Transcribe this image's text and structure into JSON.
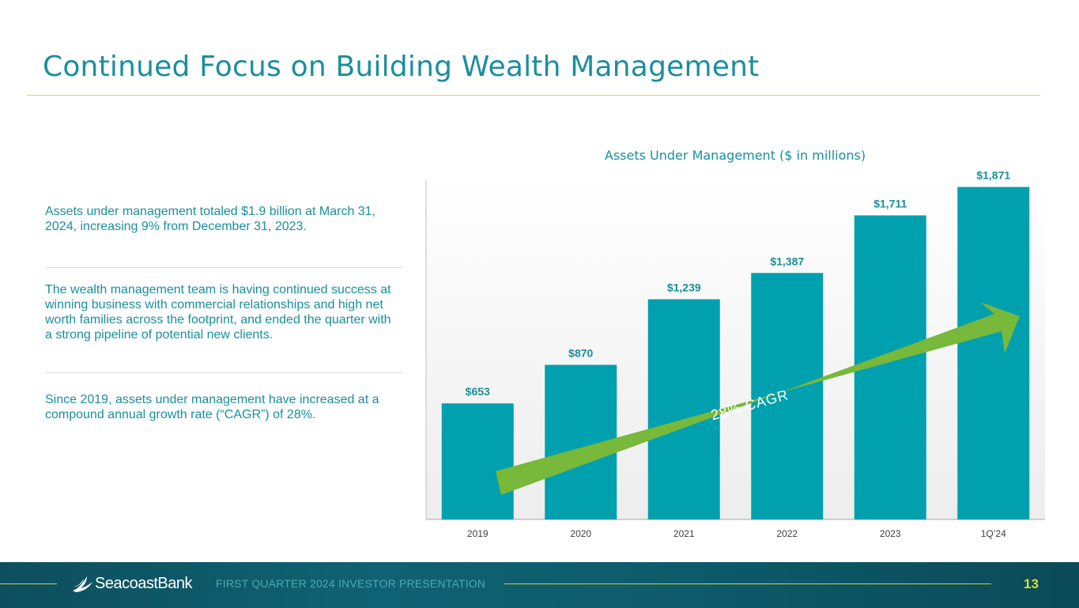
{
  "slide": {
    "title": "Continued Focus on Building Wealth Management"
  },
  "bullets": [
    "Assets under management totaled $1.9 billion at March 31, 2024, increasing 9% from December 31, 2023.",
    "The wealth management team is having continued success at winning business with commercial relationships and high net worth families across the footprint, and ended the quarter with a strong pipeline of potential new clients.",
    "Since 2019, assets under management have increased at a compound annual growth rate (“CAGR”) of 28%."
  ],
  "chart_data": {
    "type": "bar",
    "title": "Assets Under Management ($ in millions)",
    "xlabel": "",
    "ylabel": "",
    "categories": [
      "2019",
      "2020",
      "2021",
      "2022",
      "2023",
      "1Q’24"
    ],
    "values": [
      653,
      870,
      1239,
      1387,
      1711,
      1871
    ],
    "value_labels": [
      "$653",
      "$870",
      "$1,239",
      "$1,387",
      "$1,711",
      "$1,871"
    ],
    "ylim": [
      0,
      2100
    ],
    "grid": false,
    "legend": "none",
    "annotation": "28% CAGR",
    "colors": {
      "bar": "#00a0ae",
      "arrow": "#78b83a",
      "label": "#1a8f9c"
    }
  },
  "footer": {
    "brand": "SeacoastBank",
    "presentation": "FIRST QUARTER 2024 INVESTOR PRESENTATION",
    "page": "13"
  },
  "colors": {
    "title": "#1a8f9c",
    "accent_rule": "#d6de3c",
    "footer_bg": "#0f6273"
  }
}
